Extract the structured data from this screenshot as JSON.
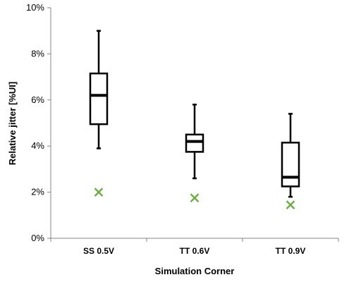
{
  "chart_data": {
    "type": "boxplot",
    "title": "",
    "xlabel": "Simulation Corner",
    "ylabel": "Relative jitter [%UI]",
    "ylim": [
      0,
      10
    ],
    "yticks": [
      0,
      2,
      4,
      6,
      8,
      10
    ],
    "ytick_labels": [
      "0%",
      "2%",
      "4%",
      "6%",
      "8%",
      "10%"
    ],
    "categories": [
      "SS 0.5V",
      "TT 0.6V",
      "TT 0.9V"
    ],
    "boxes": [
      {
        "min": 3.9,
        "q1": 4.95,
        "median": 6.2,
        "q3": 7.15,
        "max": 9.0
      },
      {
        "min": 2.6,
        "q1": 3.75,
        "median": 4.2,
        "q3": 4.5,
        "max": 5.8
      },
      {
        "min": 1.8,
        "q1": 2.25,
        "median": 2.65,
        "q3": 4.15,
        "max": 5.4
      }
    ],
    "markers": {
      "symbol": "x",
      "color": "#70AD47",
      "values": [
        2.0,
        1.75,
        1.45
      ]
    },
    "grid": false
  }
}
